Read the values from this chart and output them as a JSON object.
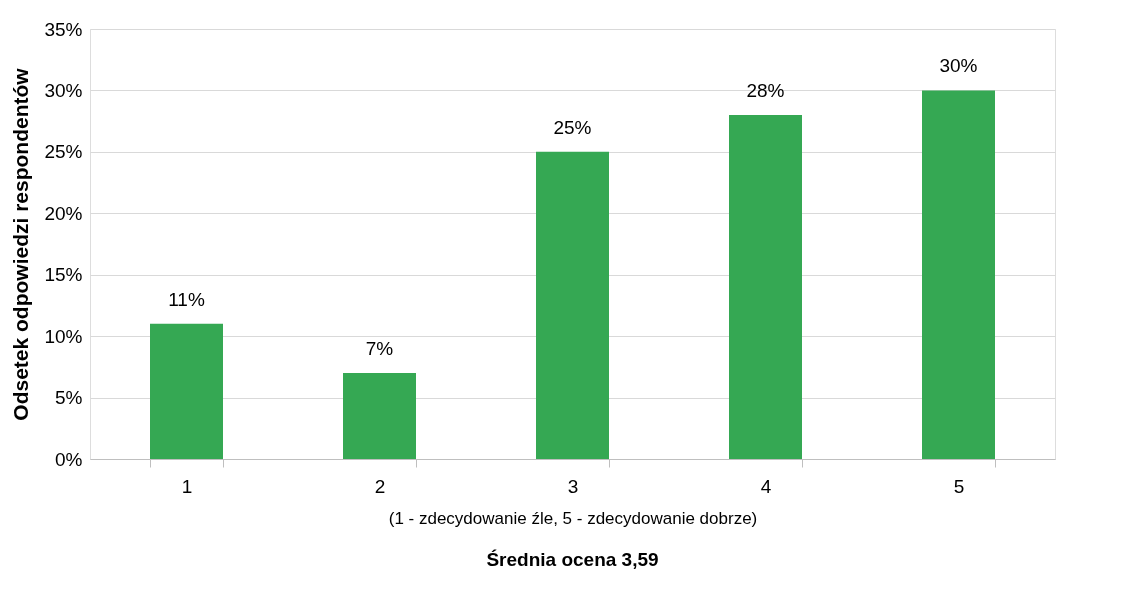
{
  "chart_data": {
    "type": "bar",
    "categories": [
      "1",
      "2",
      "3",
      "4",
      "5"
    ],
    "values": [
      11,
      7,
      25,
      28,
      30
    ],
    "value_labels": [
      "11%",
      "7%",
      "25%",
      "28%",
      "30%"
    ],
    "color": "#35a853",
    "ylabel": "Odsetek odpowiedzi respondentów",
    "xlabel": "(1 - zdecydowanie źle, 5 - zdecydowanie dobrze)",
    "annotations": [
      "Średnia ocena 3,59"
    ],
    "ylim": [
      0,
      35
    ],
    "yticks": [
      {
        "value": 0,
        "label": "0%"
      },
      {
        "value": 5,
        "label": "5%"
      },
      {
        "value": 10,
        "label": "10%"
      },
      {
        "value": 15,
        "label": "15%"
      },
      {
        "value": 20,
        "label": "20%"
      },
      {
        "value": 25,
        "label": "25%"
      },
      {
        "value": 30,
        "label": "30%"
      },
      {
        "value": 35,
        "label": "35%"
      }
    ],
    "grid": "y"
  }
}
